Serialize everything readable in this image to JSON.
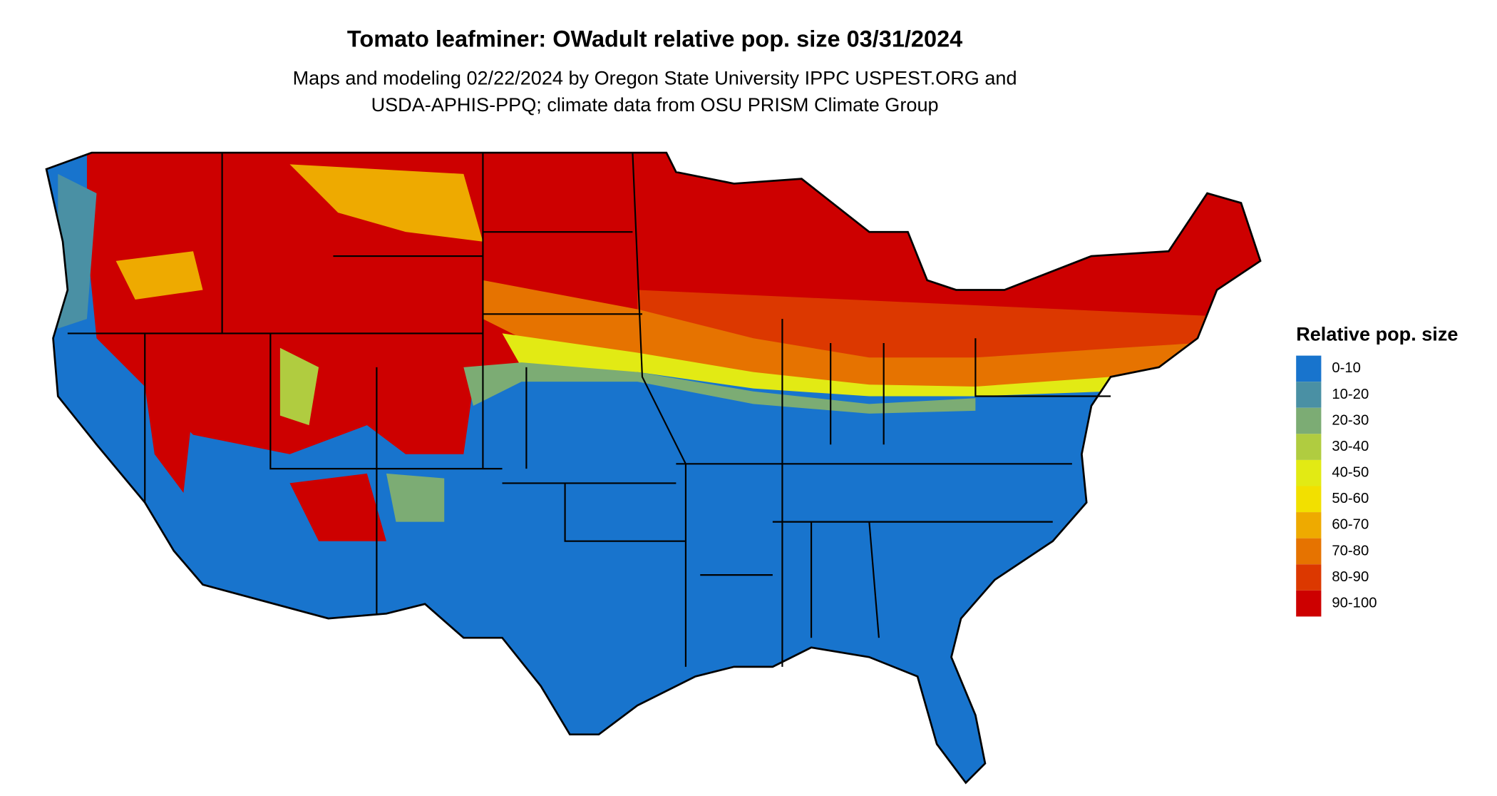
{
  "title": "Tomato leafminer: OWadult relative pop. size 03/31/2024",
  "subtitle": [
    "Maps and modeling 02/22/2024 by Oregon State University IPPC USPEST.ORG and",
    "USDA-APHIS-PPQ; climate data from OSU PRISM Climate Group"
  ],
  "legend": {
    "title": "Relative pop. size",
    "items": [
      {
        "label": "0-10",
        "color": "#1874cd"
      },
      {
        "label": "10-20",
        "color": "#4a90a4"
      },
      {
        "label": "20-30",
        "color": "#7cac74"
      },
      {
        "label": "30-40",
        "color": "#b0cc40"
      },
      {
        "label": "40-50",
        "color": "#e2ea14"
      },
      {
        "label": "50-60",
        "color": "#f2e000"
      },
      {
        "label": "60-70",
        "color": "#eeaa00"
      },
      {
        "label": "70-80",
        "color": "#e67300"
      },
      {
        "label": "80-90",
        "color": "#dc3800"
      },
      {
        "label": "90-100",
        "color": "#cd0000"
      }
    ]
  }
}
